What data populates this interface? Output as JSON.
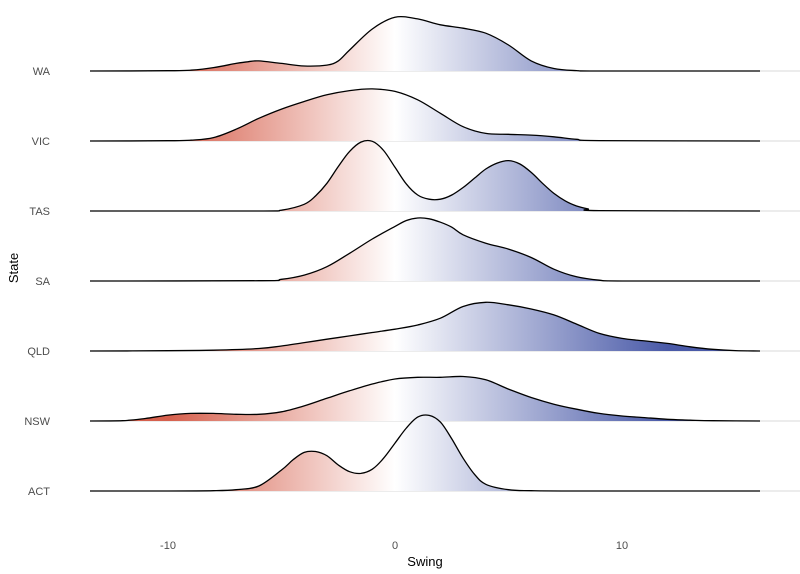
{
  "chart_data": {
    "type": "ridgeline",
    "xlabel": "Swing",
    "ylabel": "State",
    "xlim": [
      -13.5,
      16
    ],
    "x_ticks": [
      {
        "value": -10,
        "label": "-10"
      },
      {
        "value": 0,
        "label": "0"
      },
      {
        "value": 10,
        "label": "10"
      }
    ],
    "grid": false,
    "fill_colors": {
      "negative": "#d6604d",
      "zero": "#ffffff",
      "positive": "#4a5aa8"
    },
    "fill_range": [
      -10,
      12
    ],
    "categories": [
      "ACT",
      "NSW",
      "QLD",
      "SA",
      "TAS",
      "VIC",
      "WA"
    ],
    "series": [
      {
        "name": "ACT",
        "x": [
          -13.5,
          -10,
          -8,
          -7,
          -6,
          -5,
          -4.5,
          -4,
          -3.5,
          -3,
          -2.5,
          -2,
          -1.5,
          -1,
          -0.5,
          0,
          0.5,
          1,
          1.5,
          2,
          2.5,
          3,
          3.5,
          4,
          5,
          6,
          8,
          16
        ],
        "density": [
          0,
          0,
          0.003,
          0.015,
          0.06,
          0.25,
          0.37,
          0.46,
          0.47,
          0.42,
          0.31,
          0.23,
          0.21,
          0.26,
          0.39,
          0.57,
          0.75,
          0.88,
          0.9,
          0.82,
          0.62,
          0.39,
          0.2,
          0.08,
          0.015,
          0.004,
          0,
          0
        ]
      },
      {
        "name": "NSW",
        "x": [
          -13.5,
          -12,
          -11,
          -10,
          -9,
          -8,
          -7,
          -6,
          -5,
          -4,
          -3,
          -2,
          -1,
          0,
          1,
          2,
          3,
          4,
          5,
          6,
          7,
          8,
          9,
          10,
          11,
          12,
          13,
          14,
          16
        ],
        "density": [
          0,
          0.003,
          0.03,
          0.07,
          0.09,
          0.09,
          0.08,
          0.08,
          0.11,
          0.18,
          0.27,
          0.36,
          0.44,
          0.5,
          0.52,
          0.52,
          0.53,
          0.49,
          0.38,
          0.28,
          0.2,
          0.14,
          0.09,
          0.06,
          0.04,
          0.02,
          0.01,
          0.003,
          0
        ]
      },
      {
        "name": "QLD",
        "x": [
          -13.5,
          -10,
          -8,
          -6,
          -5,
          -4,
          -3,
          -2,
          -1,
          0,
          1,
          2,
          3,
          4,
          5,
          6,
          7,
          8,
          9,
          10,
          11,
          12,
          13,
          14,
          15,
          16
        ],
        "density": [
          0,
          0.003,
          0.01,
          0.03,
          0.06,
          0.1,
          0.14,
          0.18,
          0.22,
          0.26,
          0.31,
          0.39,
          0.53,
          0.58,
          0.55,
          0.5,
          0.43,
          0.32,
          0.21,
          0.15,
          0.12,
          0.09,
          0.05,
          0.02,
          0.005,
          0
        ]
      },
      {
        "name": "SA",
        "x": [
          -13.5,
          -6,
          -5,
          -4,
          -3,
          -2,
          -1,
          0,
          0.5,
          1,
          1.5,
          2,
          2.5,
          3,
          4,
          5,
          6,
          7,
          8,
          9,
          10,
          16
        ],
        "density": [
          0,
          0.003,
          0.02,
          0.07,
          0.17,
          0.33,
          0.5,
          0.65,
          0.72,
          0.75,
          0.74,
          0.7,
          0.64,
          0.55,
          0.45,
          0.38,
          0.28,
          0.14,
          0.05,
          0.01,
          0,
          0
        ]
      },
      {
        "name": "TAS",
        "x": [
          -13.5,
          -6,
          -5,
          -4,
          -3.5,
          -3,
          -2.5,
          -2,
          -1.5,
          -1,
          -0.5,
          0,
          0.5,
          1,
          1.5,
          2,
          2.5,
          3,
          3.5,
          4,
          4.5,
          5,
          5.5,
          6,
          6.5,
          7,
          7.5,
          8,
          8.5,
          9,
          16
        ],
        "density": [
          0,
          0,
          0.01,
          0.08,
          0.18,
          0.33,
          0.53,
          0.71,
          0.82,
          0.83,
          0.72,
          0.52,
          0.32,
          0.19,
          0.14,
          0.14,
          0.19,
          0.28,
          0.39,
          0.5,
          0.57,
          0.6,
          0.56,
          0.46,
          0.33,
          0.21,
          0.12,
          0.06,
          0.025,
          0.005,
          0
        ]
      },
      {
        "name": "VIC",
        "x": [
          -13.5,
          -10,
          -9,
          -8,
          -7,
          -6,
          -5,
          -4,
          -3,
          -2,
          -1,
          0,
          1,
          2,
          3,
          4,
          5,
          6,
          7,
          8,
          9,
          16
        ],
        "density": [
          0,
          0.003,
          0.01,
          0.04,
          0.14,
          0.27,
          0.38,
          0.47,
          0.55,
          0.6,
          0.62,
          0.59,
          0.49,
          0.33,
          0.17,
          0.09,
          0.08,
          0.07,
          0.05,
          0.02,
          0.005,
          0
        ]
      },
      {
        "name": "WA",
        "x": [
          -13.5,
          -10,
          -9,
          -8,
          -7,
          -6.5,
          -6,
          -5,
          -4,
          -3,
          -2.5,
          -2,
          -1,
          0,
          1,
          2,
          3,
          4,
          5,
          6,
          7,
          8,
          9,
          16
        ],
        "density": [
          0,
          0.003,
          0.01,
          0.04,
          0.09,
          0.11,
          0.12,
          0.09,
          0.06,
          0.07,
          0.12,
          0.25,
          0.5,
          0.64,
          0.62,
          0.55,
          0.51,
          0.45,
          0.31,
          0.12,
          0.03,
          0.005,
          0,
          0
        ]
      }
    ]
  }
}
